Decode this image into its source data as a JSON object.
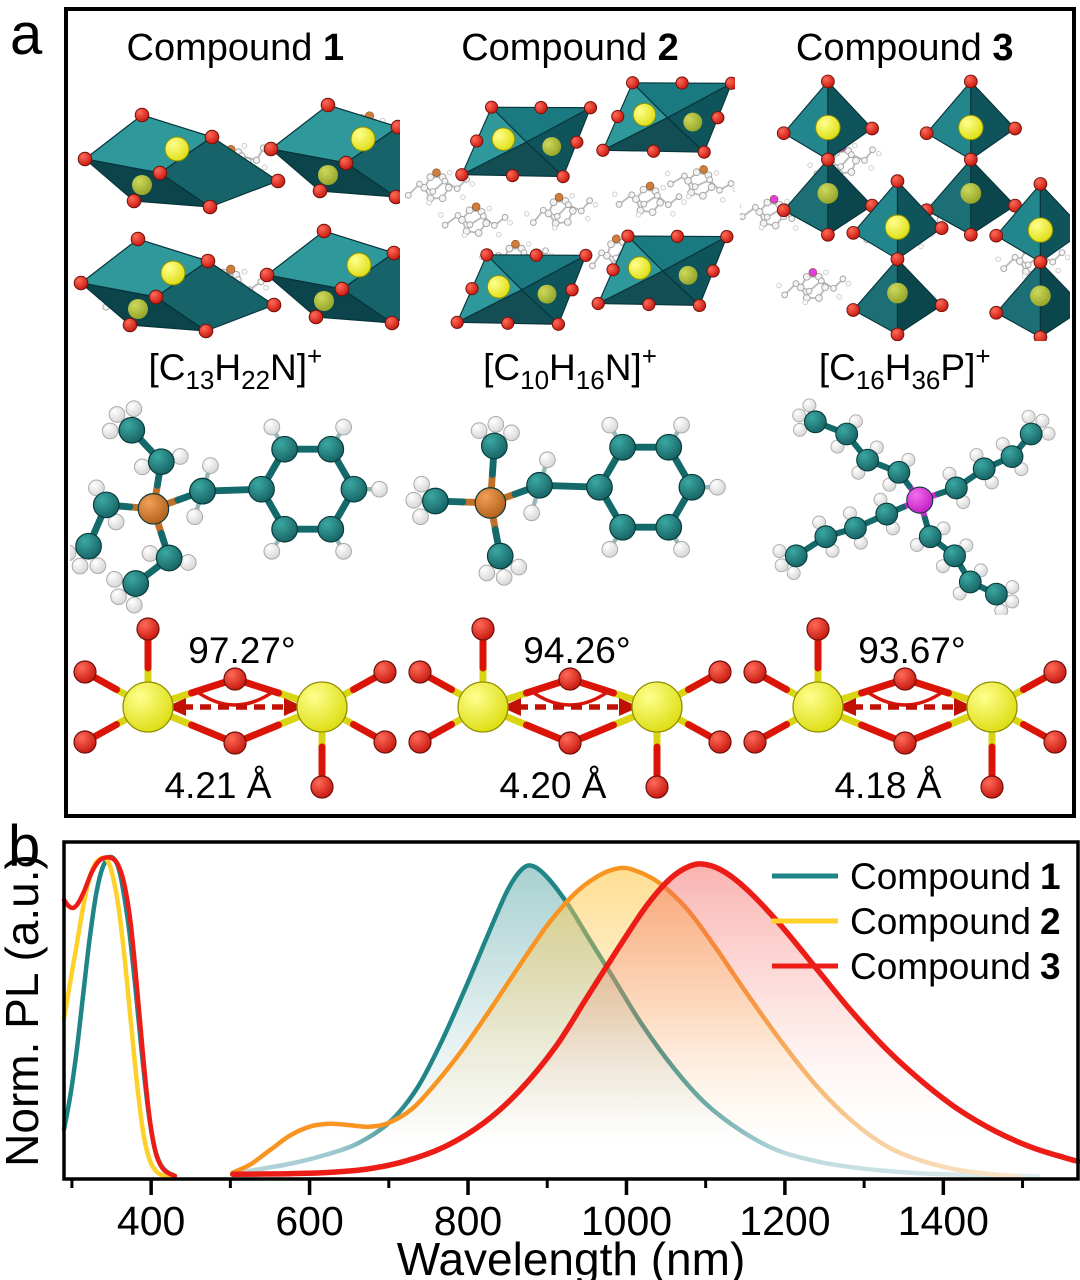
{
  "figure": {
    "panel_a_label": "a",
    "panel_b_label": "b"
  },
  "colors": {
    "polyhedra_teal": "#1B7A80",
    "oxygen_red": "#D81508",
    "metal_yellow": "#F0F005",
    "nitrogen_orange": "#C96F28",
    "phosphorus_magenta": "#DD2ADD",
    "carbon_teal": "#15605F",
    "hydrogen_white": "#EFEFEF",
    "curve_compound1": "#1F8586",
    "curve_compound2_uv": "#FDD02A",
    "curve_compound2_nir": "#F79422",
    "curve_compound3": "#EC1C16"
  },
  "panel_a": {
    "compounds": [
      {
        "title_word": "Compound",
        "title_num": "1",
        "formula_parts": [
          {
            "t": "[C"
          },
          {
            "t": "13",
            "k": "sub"
          },
          {
            "t": "H"
          },
          {
            "t": "22",
            "k": "sub"
          },
          {
            "t": "N]"
          },
          {
            "t": "+",
            "k": "sup"
          }
        ],
        "angle": "97.27°",
        "distance": "4.21 Å"
      },
      {
        "title_word": "Compound",
        "title_num": "2",
        "formula_parts": [
          {
            "t": "[C"
          },
          {
            "t": "10",
            "k": "sub"
          },
          {
            "t": "H"
          },
          {
            "t": "16",
            "k": "sub"
          },
          {
            "t": "N]"
          },
          {
            "t": "+",
            "k": "sup"
          }
        ],
        "angle": "94.26°",
        "distance": "4.20 Å"
      },
      {
        "title_word": "Compound",
        "title_num": "3",
        "formula_parts": [
          {
            "t": "[C"
          },
          {
            "t": "16",
            "k": "sub"
          },
          {
            "t": "H"
          },
          {
            "t": "36",
            "k": "sub"
          },
          {
            "t": "P]"
          },
          {
            "t": "+",
            "k": "sup"
          }
        ],
        "angle": "93.67°",
        "distance": "4.18 Å"
      }
    ]
  },
  "chart_data": {
    "type": "line",
    "title": "",
    "xlabel": "Wavelength (nm)",
    "ylabel": "Norm. PL (a.u.)",
    "xlim": [
      290,
      1570
    ],
    "ylim": [
      0,
      1.05
    ],
    "x_major_ticks": [
      400,
      600,
      800,
      1000,
      1200,
      1400
    ],
    "x_minor_ticks": [
      300,
      500,
      700,
      900,
      1100,
      1300,
      1500
    ],
    "grid": false,
    "legend_position": "top-right",
    "legend": [
      {
        "label_word": "Compound",
        "label_num": "1",
        "color": "#1F8586"
      },
      {
        "label_word": "Compound",
        "label_num": "2",
        "color": "#FDD02A"
      },
      {
        "label_word": "Compound",
        "label_num": "3",
        "color": "#EC1C16"
      }
    ],
    "series": [
      {
        "name": "Compound 1 (UV band)",
        "color": "#1F8586",
        "fill": false,
        "points": [
          [
            290,
            0.155
          ],
          [
            298,
            0.26
          ],
          [
            306,
            0.4
          ],
          [
            314,
            0.57
          ],
          [
            322,
            0.74
          ],
          [
            330,
            0.88
          ],
          [
            338,
            0.965
          ],
          [
            346,
            1.0
          ],
          [
            352,
            1.0
          ],
          [
            358,
            0.975
          ],
          [
            364,
            0.91
          ],
          [
            372,
            0.78
          ],
          [
            380,
            0.6
          ],
          [
            388,
            0.4
          ],
          [
            396,
            0.22
          ],
          [
            404,
            0.1
          ],
          [
            412,
            0.045
          ],
          [
            420,
            0.022
          ],
          [
            428,
            0.012
          ]
        ]
      },
      {
        "name": "Compound 2 (UV band)",
        "color": "#FDD02A",
        "fill": false,
        "points": [
          [
            290,
            0.5
          ],
          [
            298,
            0.615
          ],
          [
            306,
            0.73
          ],
          [
            314,
            0.845
          ],
          [
            322,
            0.935
          ],
          [
            330,
            0.985
          ],
          [
            338,
            1.0
          ],
          [
            344,
            0.995
          ],
          [
            350,
            0.96
          ],
          [
            358,
            0.86
          ],
          [
            366,
            0.7
          ],
          [
            374,
            0.5
          ],
          [
            382,
            0.3
          ],
          [
            390,
            0.145
          ],
          [
            398,
            0.06
          ],
          [
            406,
            0.025
          ],
          [
            414,
            0.012
          ],
          [
            422,
            0.008
          ]
        ]
      },
      {
        "name": "Compound 3 (UV band)",
        "color": "#EC1C16",
        "fill": false,
        "points": [
          [
            290,
            0.87
          ],
          [
            296,
            0.85
          ],
          [
            302,
            0.845
          ],
          [
            308,
            0.86
          ],
          [
            316,
            0.9
          ],
          [
            324,
            0.95
          ],
          [
            332,
            0.985
          ],
          [
            340,
            1.0
          ],
          [
            350,
            1.0
          ],
          [
            358,
            0.98
          ],
          [
            366,
            0.92
          ],
          [
            374,
            0.8
          ],
          [
            382,
            0.6
          ],
          [
            390,
            0.38
          ],
          [
            398,
            0.19
          ],
          [
            406,
            0.08
          ],
          [
            414,
            0.035
          ],
          [
            422,
            0.018
          ],
          [
            430,
            0.01
          ]
        ]
      },
      {
        "name": "Compound 1 (NIR band)",
        "color": "#1F8586",
        "fill": true,
        "fade": "both",
        "points": [
          [
            503,
            0.018
          ],
          [
            540,
            0.032
          ],
          [
            580,
            0.05
          ],
          [
            620,
            0.075
          ],
          [
            660,
            0.11
          ],
          [
            700,
            0.175
          ],
          [
            735,
            0.28
          ],
          [
            765,
            0.42
          ],
          [
            795,
            0.585
          ],
          [
            825,
            0.76
          ],
          [
            850,
            0.9
          ],
          [
            868,
            0.965
          ],
          [
            882,
            0.975
          ],
          [
            900,
            0.94
          ],
          [
            925,
            0.86
          ],
          [
            950,
            0.76
          ],
          [
            985,
            0.62
          ],
          [
            1020,
            0.48
          ],
          [
            1060,
            0.345
          ],
          [
            1100,
            0.235
          ],
          [
            1145,
            0.15
          ],
          [
            1190,
            0.09
          ],
          [
            1240,
            0.055
          ],
          [
            1300,
            0.032
          ],
          [
            1370,
            0.018
          ],
          [
            1450,
            0.012
          ],
          [
            1520,
            0.009
          ]
        ]
      },
      {
        "name": "Compound 2 (NIR band)",
        "color": "#F79422",
        "fill": true,
        "fade": "tail",
        "points": [
          [
            503,
            0.02
          ],
          [
            525,
            0.045
          ],
          [
            550,
            0.09
          ],
          [
            575,
            0.135
          ],
          [
            600,
            0.163
          ],
          [
            625,
            0.172
          ],
          [
            650,
            0.168
          ],
          [
            675,
            0.163
          ],
          [
            700,
            0.175
          ],
          [
            730,
            0.22
          ],
          [
            760,
            0.3
          ],
          [
            795,
            0.41
          ],
          [
            830,
            0.535
          ],
          [
            865,
            0.665
          ],
          [
            900,
            0.79
          ],
          [
            935,
            0.89
          ],
          [
            965,
            0.945
          ],
          [
            990,
            0.968
          ],
          [
            1010,
            0.962
          ],
          [
            1040,
            0.925
          ],
          [
            1075,
            0.845
          ],
          [
            1110,
            0.73
          ],
          [
            1150,
            0.585
          ],
          [
            1195,
            0.43
          ],
          [
            1240,
            0.29
          ],
          [
            1285,
            0.18
          ],
          [
            1330,
            0.1
          ],
          [
            1375,
            0.055
          ],
          [
            1420,
            0.028
          ],
          [
            1465,
            0.014
          ],
          [
            1495,
            0.009
          ]
        ]
      },
      {
        "name": "Compound 3 (NIR band)",
        "color": "#EC1C16",
        "fill": true,
        "fade": "none",
        "points": [
          [
            503,
            0.015
          ],
          [
            560,
            0.016
          ],
          [
            620,
            0.02
          ],
          [
            670,
            0.03
          ],
          [
            720,
            0.055
          ],
          [
            770,
            0.1
          ],
          [
            820,
            0.175
          ],
          [
            865,
            0.275
          ],
          [
            910,
            0.41
          ],
          [
            950,
            0.565
          ],
          [
            990,
            0.72
          ],
          [
            1025,
            0.85
          ],
          [
            1055,
            0.935
          ],
          [
            1080,
            0.975
          ],
          [
            1100,
            0.98
          ],
          [
            1125,
            0.955
          ],
          [
            1155,
            0.895
          ],
          [
            1195,
            0.79
          ],
          [
            1240,
            0.655
          ],
          [
            1285,
            0.52
          ],
          [
            1330,
            0.4
          ],
          [
            1375,
            0.3
          ],
          [
            1420,
            0.215
          ],
          [
            1465,
            0.15
          ],
          [
            1510,
            0.1
          ],
          [
            1555,
            0.065
          ],
          [
            1570,
            0.055
          ]
        ]
      }
    ]
  }
}
